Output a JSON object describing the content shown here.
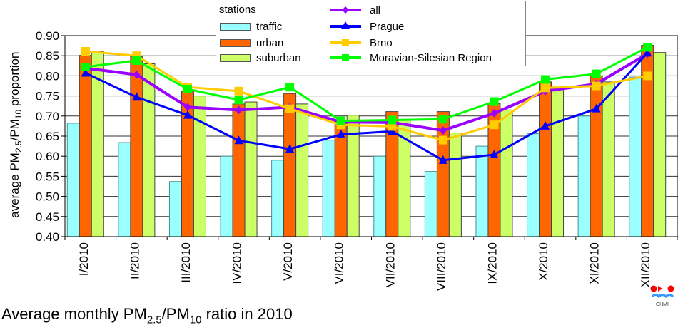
{
  "chart_data": {
    "type": "bar",
    "title": "Average monthly PM2.5/PM10 ratio in 2010",
    "caption": {
      "prefix": "Average monthly PM",
      "sub1": "2.5",
      "mid": "/PM",
      "sub2": "10",
      "suffix": " ratio in 2010"
    },
    "ylabel": {
      "prefix": "average PM",
      "sub1": "2.5",
      "mid": "/PM",
      "sub2": "10",
      "suffix": " proportion"
    },
    "xlabel": "",
    "ylim": [
      0.4,
      0.9
    ],
    "yticks": [
      "0.40",
      "0.45",
      "0.50",
      "0.55",
      "0.60",
      "0.65",
      "0.70",
      "0.75",
      "0.80",
      "0.85",
      "0.90"
    ],
    "grid": true,
    "legend_title": "stations",
    "legend_position": "top-center",
    "categories": [
      "I/2010",
      "II/2010",
      "III/2010",
      "IV/2010",
      "V/2010",
      "VI/2010",
      "VII/2010",
      "VIII/2010",
      "IX/2010",
      "X/2010",
      "XI/2010",
      "XII/2010"
    ],
    "bar_series": [
      {
        "name": "traffic",
        "color": "#99FFFF",
        "values": [
          0.682,
          0.634,
          0.537,
          0.6,
          0.59,
          0.64,
          0.6,
          0.562,
          0.625,
          0.656,
          0.7,
          0.797
        ]
      },
      {
        "name": "urban",
        "color": "#FF6600",
        "values": [
          0.851,
          0.848,
          0.762,
          0.73,
          0.756,
          0.69,
          0.711,
          0.711,
          0.731,
          0.785,
          0.8,
          0.876
        ]
      },
      {
        "name": "suburban",
        "color": "#CCFF66",
        "values": [
          0.86,
          0.83,
          0.75,
          0.735,
          0.73,
          0.702,
          0.69,
          0.658,
          0.715,
          0.775,
          0.785,
          0.858
        ]
      }
    ],
    "line_series": [
      {
        "name": "all",
        "color": "#9900FF",
        "marker": "diamond",
        "values": [
          0.819,
          0.803,
          0.722,
          0.715,
          0.722,
          0.685,
          0.684,
          0.664,
          0.707,
          0.762,
          0.78,
          0.855
        ]
      },
      {
        "name": "Prague",
        "color": "#0000FF",
        "marker": "triangle",
        "values": [
          0.807,
          0.747,
          0.702,
          0.639,
          0.618,
          0.654,
          0.662,
          0.59,
          0.604,
          0.675,
          0.718,
          0.857
        ]
      },
      {
        "name": "Brno",
        "color": "#FFCC00",
        "marker": "square",
        "values": [
          0.861,
          0.85,
          0.772,
          0.762,
          0.718,
          0.678,
          0.674,
          0.64,
          0.678,
          0.77,
          0.775,
          0.8
        ]
      },
      {
        "name": "Moravian-Silesian Region",
        "color": "#00FF00",
        "marker": "square",
        "values": [
          0.822,
          0.838,
          0.767,
          0.74,
          0.772,
          0.688,
          0.69,
          0.692,
          0.736,
          0.791,
          0.805,
          0.871
        ]
      }
    ]
  },
  "logo": {
    "text": "CHMI"
  }
}
